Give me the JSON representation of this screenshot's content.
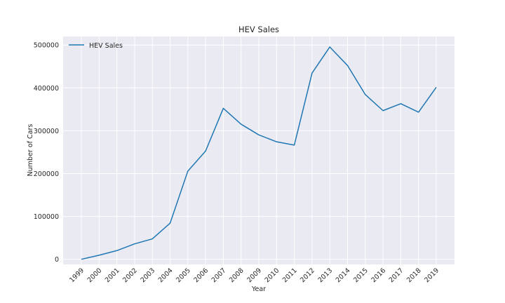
{
  "chart_data": {
    "type": "line",
    "title": "HEV Sales",
    "xlabel": "Year",
    "ylabel": "Number of Cars",
    "x": [
      "1999",
      "2000",
      "2001",
      "2002",
      "2003",
      "2004",
      "2005",
      "2006",
      "2007",
      "2008",
      "2009",
      "2010",
      "2011",
      "2012",
      "2013",
      "2014",
      "2015",
      "2016",
      "2017",
      "2018",
      "2019"
    ],
    "series": [
      {
        "name": "HEV Sales",
        "values": [
          0,
          9500,
          20300,
          36000,
          47600,
          84200,
          205800,
          252600,
          352300,
          315300,
          290300,
          274200,
          266500,
          434500,
          495500,
          452200,
          384400,
          346900,
          363100,
          343300,
          401400
        ]
      }
    ],
    "yticks": [
      0,
      100000,
      200000,
      300000,
      400000,
      500000
    ],
    "ylim": [
      -12000,
      520000
    ],
    "grid": true,
    "legend": "top-left",
    "colors": {
      "background": "#eaeaf2",
      "grid": "#ffffff",
      "line": "#1f77b4",
      "text": "#262626"
    }
  }
}
